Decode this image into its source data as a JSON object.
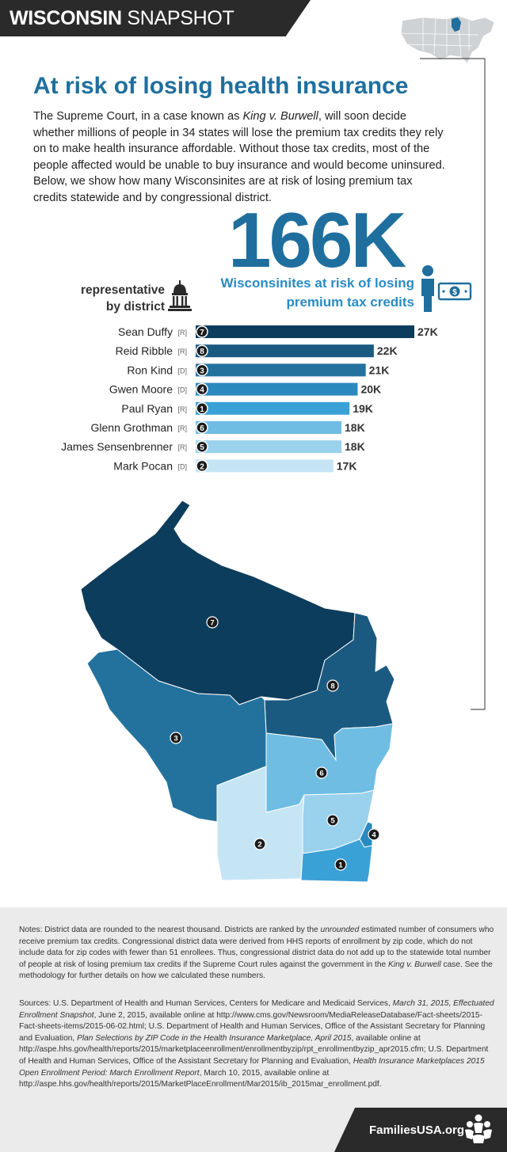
{
  "header": {
    "title_bold": "WISCONSIN",
    "title_light": "SNAPSHOT"
  },
  "title": "At risk of losing health insurance",
  "intro": {
    "part1": "The Supreme Court, in a case known as ",
    "case_name": "King v. Burwell",
    "part2": ", will soon decide whether millions of people in 34 states will lose the premium tax credits they rely on to make health insurance affordable. Without those tax credits, most of the people affected would be unable to buy insurance and would become uninsured. Below, we show how many Wisconsinites are at risk of losing premium tax credits statewide and by congressional district."
  },
  "headline": {
    "number": "166K",
    "caption_line1": "Wisconsinites at risk of losing",
    "caption_line2": "premium tax credits"
  },
  "rep_heading": {
    "line1": "representative",
    "line2": "by district"
  },
  "chart_data": {
    "type": "bar",
    "title": "Wisconsinites at risk of losing premium tax credits, by district",
    "xlabel": "",
    "ylabel": "",
    "xlim": [
      0,
      27
    ],
    "categories": [
      "Sean Duffy",
      "Reid Ribble",
      "Ron Kind",
      "Gwen Moore",
      "Paul Ryan",
      "Glenn Grothman",
      "James Sensenbrenner",
      "Mark Pocan"
    ],
    "parties": [
      "[R]",
      "[R]",
      "[D]",
      "[D]",
      "[R]",
      "[R]",
      "[R]",
      "[D]"
    ],
    "districts": [
      "7",
      "8",
      "3",
      "4",
      "1",
      "6",
      "5",
      "2"
    ],
    "values": [
      27,
      22,
      21,
      20,
      19,
      18,
      18,
      17
    ],
    "value_labels": [
      "27K",
      "22K",
      "21K",
      "20K",
      "19K",
      "18K",
      "18K",
      "17K"
    ],
    "colors": [
      "#0d3d5c",
      "#1a5a80",
      "#23729e",
      "#2a89bf",
      "#3aa1d6",
      "#6fbde3",
      "#9ad1ed",
      "#c5e5f5"
    ]
  },
  "map_labels": [
    "7",
    "8",
    "3",
    "6",
    "5",
    "2",
    "4",
    "1"
  ],
  "notes": {
    "p1": "Notes: District data are rounded to the nearest thousand. Districts are ranked by the ",
    "unrounded": "unrounded",
    "p2": " estimated number of consumers who receive premium tax credits. Congressional district data were derived from HHS reports of enrollment by zip code, which do not include data for zip codes with fewer than 51 enrollees. Thus, congressional district data do not add up to the statewide total number of people at risk of losing premium tax credits if the Supreme Court rules against the government in the ",
    "case_name": "King v. Burwell",
    "p3": " case. See the methodology for further details on how we calculated these numbers."
  },
  "sources": {
    "s1": "Sources: U.S. Department of Health and Human Services, Centers for Medicare and Medicaid Services, ",
    "i1": "March 31, 2015, Effectuated Enrollment Snapshot",
    "s2": ", June 2, 2015, available online at http://www.cms.gov/Newsroom/MediaReleaseDatabase/Fact-sheets/2015-Fact-sheets-items/2015-06-02.html; U.S. Department of Health and Human Services, Office of the Assistant Secretary for Planning and Evaluation, ",
    "i2": "Plan Selections by ZIP Code in the Health Insurance Marketplace, April 2015",
    "s3": ", available online at http://aspe.hhs.gov/health/reports/2015/marketplaceenrollment/enrollmentbyzip/rpt_enrollmentbyzip_apr2015.cfm; U.S. Department of Health and Human Services, Office of the Assistant Secretary for Planning and Evaluation, ",
    "i3": "Health Insurance Marketplaces 2015 Open Enrollment Period: March Enrollment Report",
    "s4": ", March 10, 2015, available online at http://aspe.hhs.gov/health/reports/2015/MarketPlaceEnrollment/Mar2015/ib_2015mar_enrollment.pdf."
  },
  "footer": {
    "brand": "FamiliesUSA.org"
  },
  "colors": {
    "title_blue": "#1f6f9e",
    "caption_blue": "#2a8bc4",
    "dark": "#2a2a2a"
  }
}
